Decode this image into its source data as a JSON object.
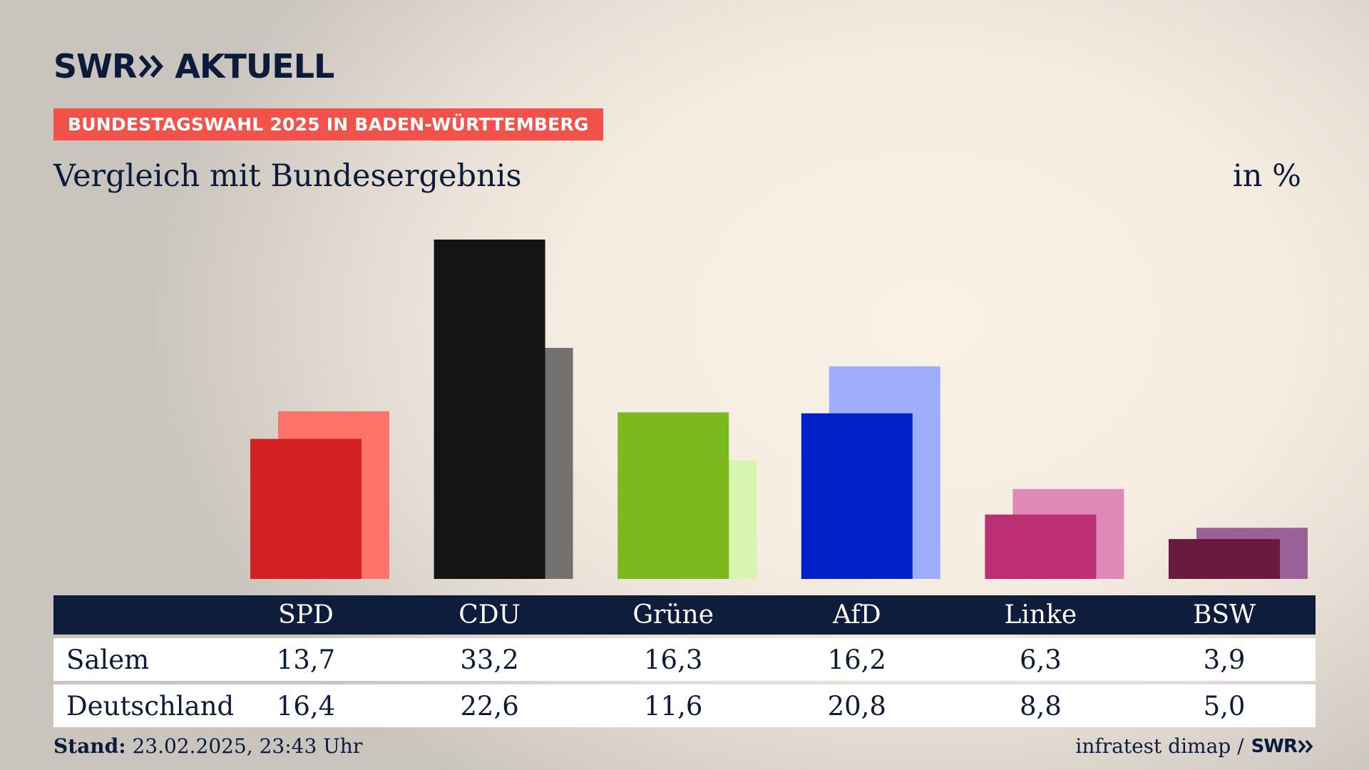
{
  "header": {
    "logo_left": "SWR",
    "logo_right": "AKTUELL",
    "badge": "BUNDESTAGSWAHL 2025 IN BADEN-WÜRTTEMBERG",
    "subtitle": "Vergleich mit Bundesergebnis",
    "unit": "in %"
  },
  "chart_data": {
    "type": "bar",
    "categories": [
      "SPD",
      "CDU",
      "Grüne",
      "AfD",
      "Linke",
      "BSW"
    ],
    "series": [
      {
        "name": "Salem",
        "values": [
          13.7,
          33.2,
          16.3,
          16.2,
          6.3,
          3.9
        ]
      },
      {
        "name": "Deutschland",
        "values": [
          16.4,
          22.6,
          11.6,
          20.8,
          8.8,
          5.0
        ]
      }
    ],
    "value_labels": [
      [
        "13,7",
        "33,2",
        "16,3",
        "16,2",
        "6,3",
        "3,9"
      ],
      [
        "16,4",
        "22,6",
        "11,6",
        "20,8",
        "8,8",
        "5,0"
      ]
    ],
    "colors": {
      "primary": [
        "#d42020",
        "#141414",
        "#7aba1e",
        "#0020c8",
        "#bc2f72",
        "#6a1a40"
      ],
      "secondary": [
        "#ff736b",
        "#737270",
        "#d8f5b0",
        "#9fadfd",
        "#df89b8",
        "#9a6098"
      ]
    },
    "ylim": [
      0,
      33.2
    ],
    "grid": false,
    "legend": "table-below"
  },
  "table": {
    "row_labels": [
      "Salem",
      "Deutschland"
    ]
  },
  "footer": {
    "stand_label": "Stand:",
    "stand_value": "23.02.2025, 23:43 Uhr",
    "source": "infratest dimap /",
    "source_logo": "SWR"
  }
}
